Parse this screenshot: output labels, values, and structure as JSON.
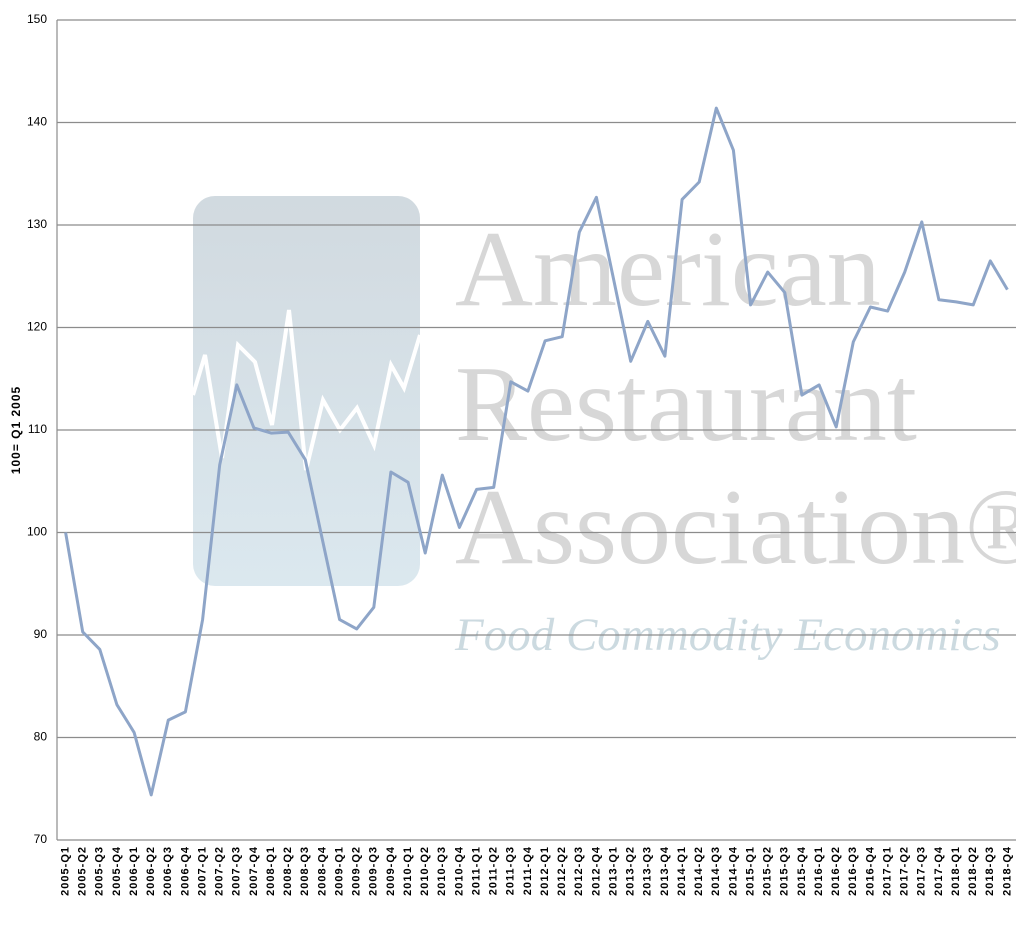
{
  "chart_data": {
    "type": "line",
    "y_label": "100= Q1 2005",
    "watermark": [
      "American",
      "Restaurant",
      "Association®"
    ],
    "watermark_subtitle": "Food Commodity Economics",
    "categories": [
      "2005-Q1",
      "2005-Q2",
      "2005-Q3",
      "2005-Q4",
      "2006-Q1",
      "2006-Q2",
      "2006-Q3",
      "2006-Q4",
      "2007-Q1",
      "2007-Q2",
      "2007-Q3",
      "2007-Q4",
      "2008-Q1",
      "2008-Q2",
      "2008-Q3",
      "2008-Q4",
      "2009-Q1",
      "2009-Q2",
      "2009-Q3",
      "2009-Q4",
      "2010-Q1",
      "2010-Q2",
      "2010-Q3",
      "2010-Q4",
      "2011-Q1",
      "2011-Q2",
      "2011-Q3",
      "2011-Q4",
      "2012-Q1",
      "2012-Q2",
      "2012-Q3",
      "2012-Q4",
      "2013-Q1",
      "2013-Q2",
      "2013-Q3",
      "2013-Q4",
      "2014-Q1",
      "2014-Q2",
      "2014-Q3",
      "2014-Q4",
      "2015-Q1",
      "2015-Q2",
      "2015-Q3",
      "2015-Q4",
      "2016-Q1",
      "2016-Q2",
      "2016-Q3",
      "2016-Q4",
      "2017-Q1",
      "2017-Q2",
      "2017-Q3",
      "2017-Q4",
      "2018-Q1",
      "2018-Q2",
      "2018-Q3",
      "2018-Q4"
    ],
    "values": [
      100,
      90.3,
      88.6,
      83.2,
      80.5,
      74.4,
      81.7,
      82.5,
      91.5,
      106.6,
      114.4,
      110.2,
      109.7,
      109.8,
      107.1,
      99.3,
      91.5,
      90.6,
      92.7,
      105.9,
      104.9,
      98.0,
      105.6,
      100.5,
      104.2,
      104.4,
      114.7,
      113.8,
      118.7,
      119.1,
      129.3,
      132.7,
      124.7,
      116.7,
      120.6,
      117.2,
      132.5,
      134.2,
      141.4,
      137.3,
      122.2,
      125.4,
      123.4,
      113.4,
      114.4,
      110.3,
      118.6,
      122.0,
      121.6,
      125.4,
      130.3,
      122.7,
      122.5,
      122.2,
      126.5,
      123.7
    ],
    "color": "#8ea5c8",
    "ylim": [
      70,
      150
    ],
    "yticks": [
      70,
      80,
      90,
      100,
      110,
      120,
      130,
      140,
      150
    ],
    "grid": true
  }
}
